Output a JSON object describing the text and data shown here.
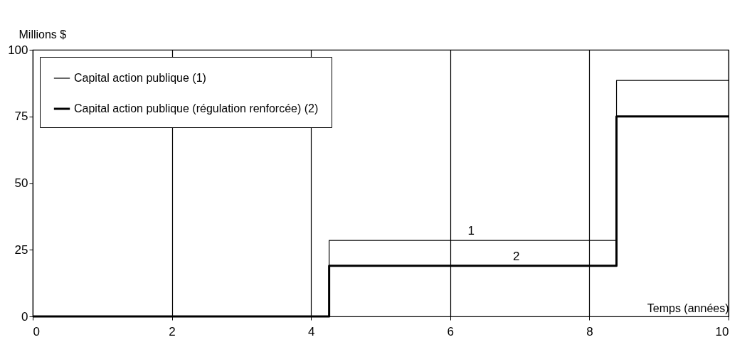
{
  "chart_data": {
    "type": "step",
    "ylabel": "Millions $",
    "xlabel": "Temps (années)",
    "x": [
      0,
      4.26,
      8.39,
      10
    ],
    "series": [
      {
        "name": "Capital action publique (1)",
        "color": "#000000",
        "values": [
          0,
          28.5,
          88.5,
          88.5
        ]
      },
      {
        "name": "Capital action publique (régulation renforcée) (2)",
        "color": "#000000",
        "values": [
          0,
          19,
          75,
          75
        ]
      }
    ],
    "annotations": [
      {
        "text": "1",
        "x": 6.3,
        "y": 28.5
      },
      {
        "text": "2",
        "x": 6.95,
        "y": 19
      }
    ],
    "xlim": [
      0,
      10
    ],
    "xticks": [
      0,
      2,
      4,
      6,
      8,
      10
    ],
    "ylim": [
      0,
      100
    ],
    "yticks": [
      0,
      25,
      50,
      75,
      100
    ],
    "grid": "x",
    "legend": "top left"
  }
}
